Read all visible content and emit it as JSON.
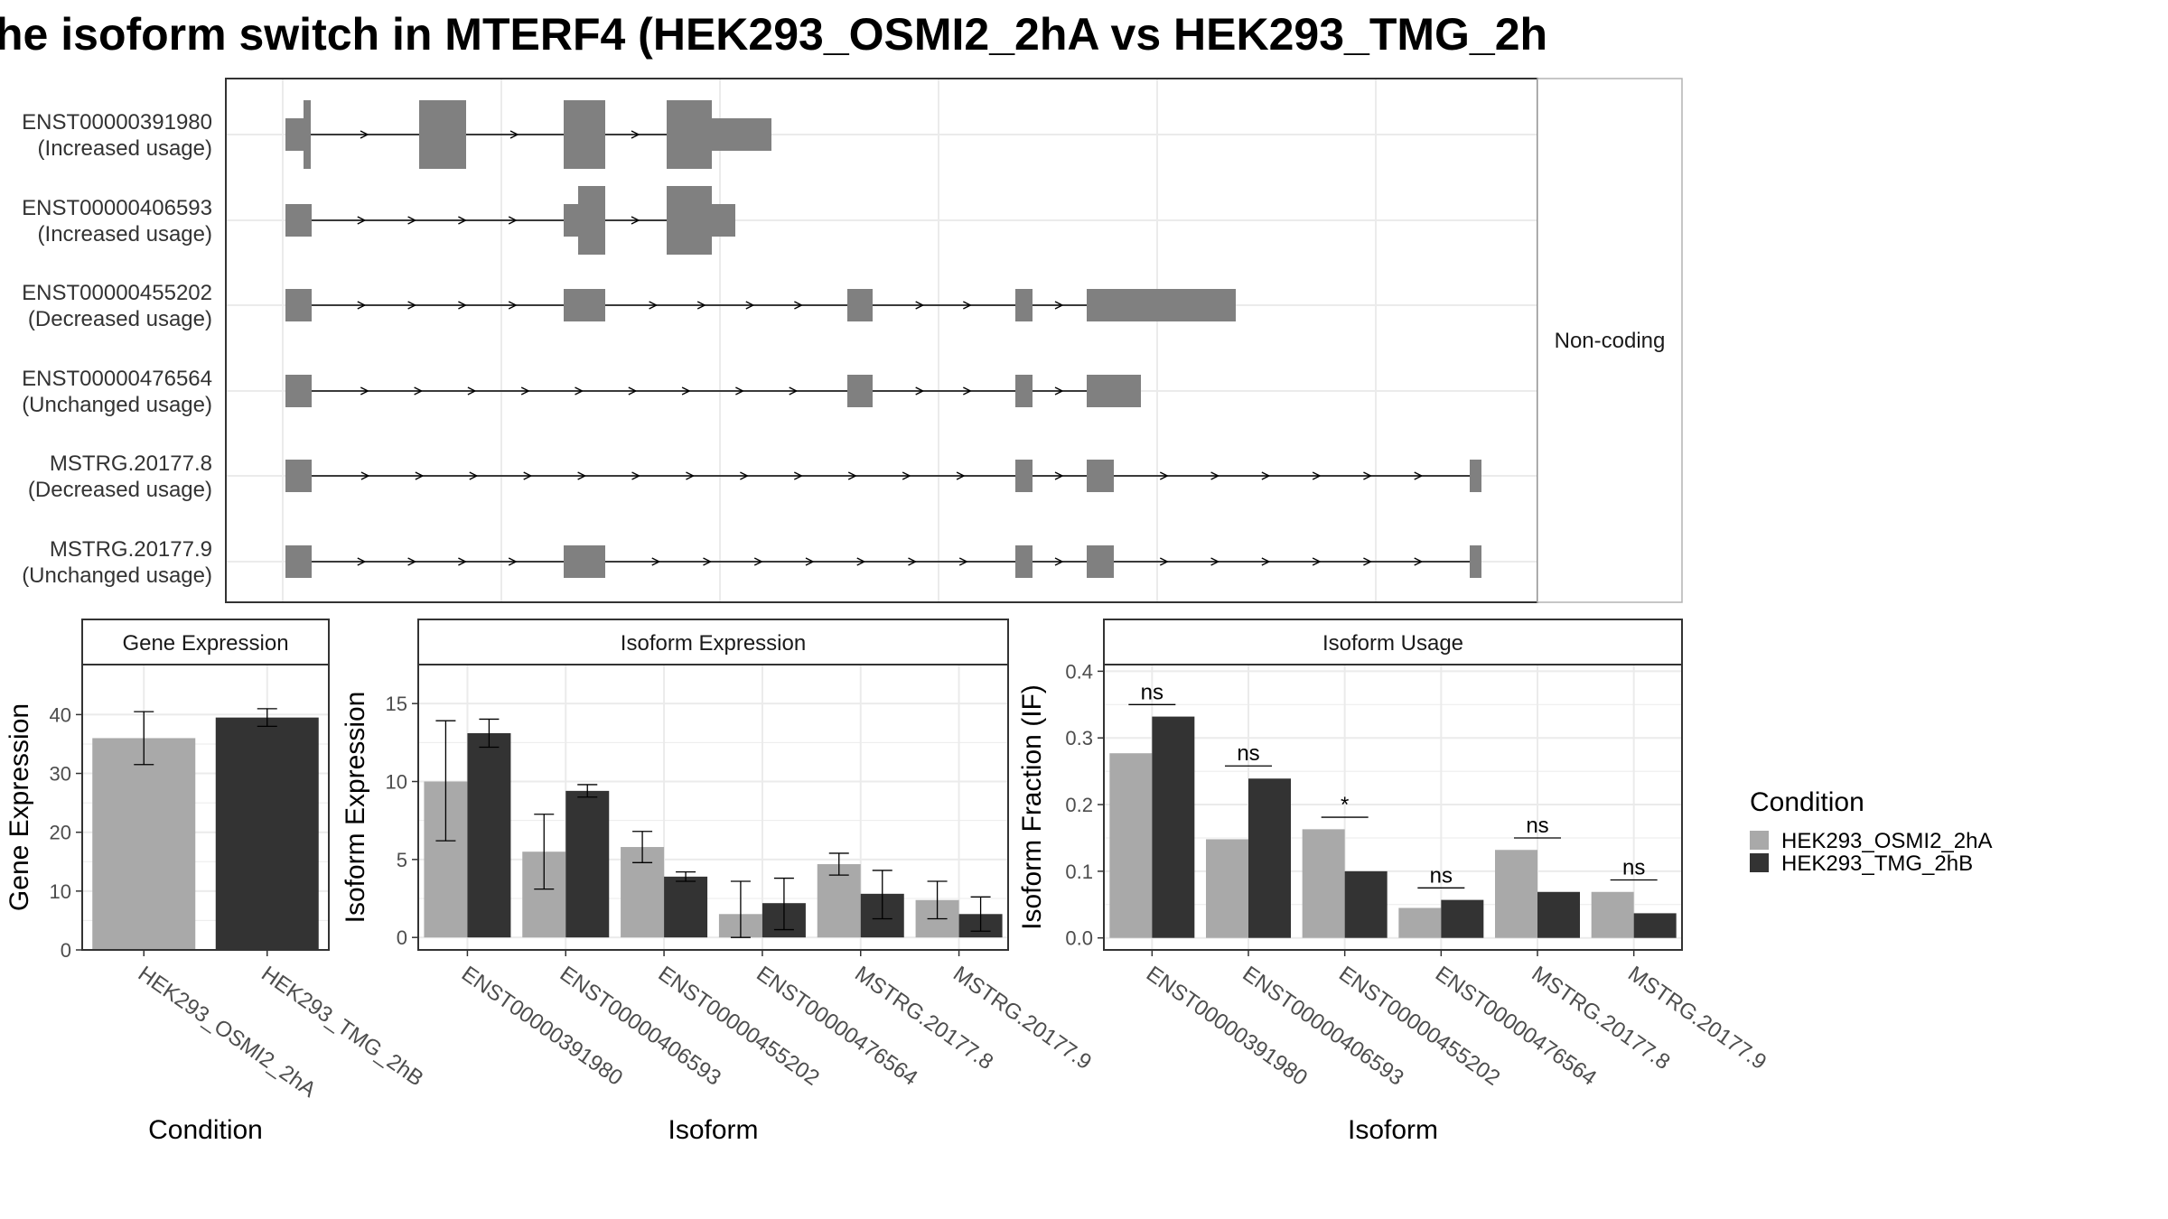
{
  "title": "he isoform switch in MTERF4 (HEK293_OSMI2_2hA vs HEK293_TMG_2h",
  "colors": {
    "exon": "#808080",
    "cond_a": "#a9a9a9",
    "cond_b": "#333333",
    "grid": "#ebebeb",
    "panel_border": "#333333",
    "strip_fill": "#ffffff"
  },
  "structure": {
    "facet_label": "Non-coding",
    "transcripts": [
      {
        "id": "ENST00000391980",
        "status": "(Increased usage)"
      },
      {
        "id": "ENST00000406593",
        "status": "(Increased usage)"
      },
      {
        "id": "ENST00000455202",
        "status": "(Decreased usage)"
      },
      {
        "id": "ENST00000476564",
        "status": "(Unchanged usage)"
      },
      {
        "id": "MSTRG.20177.8",
        "status": "(Decreased usage)"
      },
      {
        "id": "MSTRG.20177.9",
        "status": "(Unchanged usage)"
      }
    ]
  },
  "legend": {
    "title": "Condition",
    "items": [
      "HEK293_OSMI2_2hA",
      "HEK293_TMG_2hB"
    ]
  },
  "chart_data": [
    {
      "type": "bar",
      "panel": "Gene Expression",
      "categories": [
        "HEK293_OSMI2_2hA",
        "HEK293_TMG_2hB"
      ],
      "values": [
        36.0,
        39.5
      ],
      "errors": [
        [
          31.5,
          40.5
        ],
        [
          38.0,
          41.0
        ]
      ],
      "xlabel": "Condition",
      "ylabel": "Gene Expression",
      "ylim": [
        0,
        48.5
      ],
      "yticks": [
        0,
        10,
        20,
        30,
        40
      ]
    },
    {
      "type": "bar",
      "panel": "Isoform Expression",
      "categories": [
        "ENST00000391980",
        "ENST00000406593",
        "ENST00000455202",
        "ENST00000476564",
        "MSTRG.20177.8",
        "MSTRG.20177.9"
      ],
      "series": [
        {
          "name": "HEK293_OSMI2_2hA",
          "values": [
            10.0,
            5.5,
            5.8,
            1.5,
            4.7,
            2.4
          ],
          "errors": [
            [
              6.2,
              13.9
            ],
            [
              3.1,
              7.9
            ],
            [
              4.8,
              6.8
            ],
            [
              0.0,
              3.6
            ],
            [
              4.0,
              5.4
            ],
            [
              1.2,
              3.6
            ]
          ]
        },
        {
          "name": "HEK293_TMG_2hB",
          "values": [
            13.1,
            9.4,
            3.9,
            2.2,
            2.8,
            1.5
          ],
          "errors": [
            [
              12.2,
              14.0
            ],
            [
              9.0,
              9.8
            ],
            [
              3.6,
              4.2
            ],
            [
              0.5,
              3.8
            ],
            [
              1.2,
              4.3
            ],
            [
              0.4,
              2.6
            ]
          ]
        }
      ],
      "xlabel": "Isoform",
      "ylabel": "Isoform Expression",
      "ylim": [
        -0.8,
        17.5
      ],
      "yticks": [
        0,
        5,
        10,
        15
      ]
    },
    {
      "type": "bar",
      "panel": "Isoform Usage",
      "categories": [
        "ENST00000391980",
        "ENST00000406593",
        "ENST00000455202",
        "ENST00000476564",
        "MSTRG.20177.8",
        "MSTRG.20177.9"
      ],
      "series": [
        {
          "name": "HEK293_OSMI2_2hA",
          "values": [
            0.277,
            0.148,
            0.163,
            0.045,
            0.132,
            0.069
          ]
        },
        {
          "name": "HEK293_TMG_2hB",
          "values": [
            0.332,
            0.239,
            0.1,
            0.057,
            0.069,
            0.037
          ]
        }
      ],
      "annotations": [
        "ns",
        "ns",
        "*",
        "ns",
        "ns",
        "ns"
      ],
      "annotation_values": [
        0.35,
        0.258,
        0.181,
        0.075,
        0.15,
        0.087
      ],
      "xlabel": "Isoform",
      "ylabel": "Isoform Fraction (IF)",
      "ylim": [
        -0.018,
        0.41
      ],
      "yticks": [
        0.0,
        0.1,
        0.2,
        0.3,
        0.4
      ],
      "ytick_labels": [
        "0.0",
        "0.1",
        "0.2",
        "0.3",
        "0.4"
      ]
    }
  ]
}
